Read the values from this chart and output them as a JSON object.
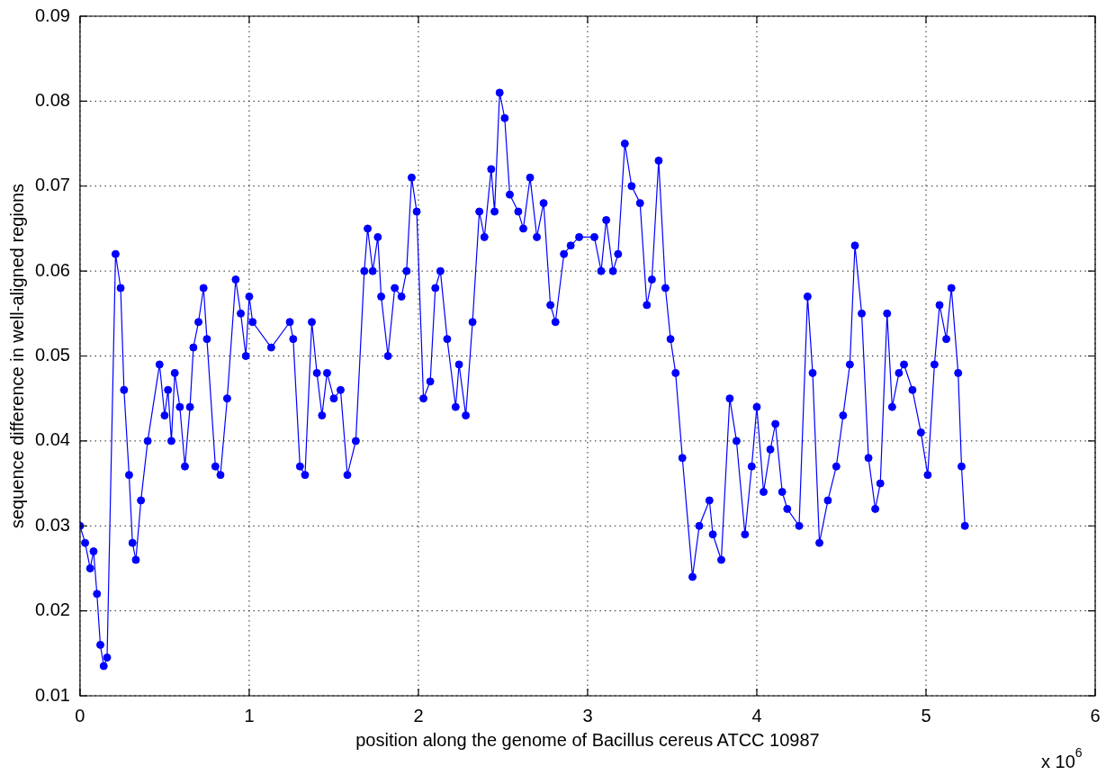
{
  "chart_data": {
    "type": "line",
    "xlabel": "position along the genome of Bacillus cereus ATCC 10987",
    "ylabel": "sequence difference in well-aligned regions",
    "annotations": [
      "x 10$^{6}$"
    ],
    "color": "#0000ff",
    "marker": "circle",
    "grid": true,
    "xlim": [
      0,
      6
    ],
    "xticks": [
      0,
      1,
      2,
      3,
      4,
      5,
      6
    ],
    "ylim": [
      0.01,
      0.09
    ],
    "yticks": [
      0.01,
      0.02,
      0.03,
      0.04,
      0.05,
      0.06,
      0.07,
      0.08,
      0.09
    ],
    "x": [
      0,
      0.03,
      0.06,
      0.08,
      0.1,
      0.12,
      0.14,
      0.16,
      0.21,
      0.24,
      0.26,
      0.29,
      0.31,
      0.33,
      0.36,
      0.4,
      0.47,
      0.5,
      0.52,
      0.54,
      0.56,
      0.59,
      0.62,
      0.65,
      0.67,
      0.7,
      0.73,
      0.75,
      0.8,
      0.83,
      0.87,
      0.92,
      0.95,
      0.98,
      1.0,
      1.02,
      1.13,
      1.24,
      1.26,
      1.3,
      1.33,
      1.37,
      1.4,
      1.43,
      1.46,
      1.5,
      1.54,
      1.58,
      1.63,
      1.68,
      1.7,
      1.73,
      1.76,
      1.78,
      1.82,
      1.86,
      1.9,
      1.93,
      1.96,
      1.99,
      2.03,
      2.07,
      2.1,
      2.13,
      2.17,
      2.22,
      2.24,
      2.28,
      2.32,
      2.36,
      2.39,
      2.43,
      2.45,
      2.48,
      2.51,
      2.54,
      2.59,
      2.62,
      2.66,
      2.7,
      2.74,
      2.78,
      2.81,
      2.86,
      2.9,
      2.95,
      3.04,
      3.08,
      3.11,
      3.15,
      3.18,
      3.22,
      3.26,
      3.31,
      3.35,
      3.38,
      3.42,
      3.46,
      3.49,
      3.52,
      3.56,
      3.62,
      3.66,
      3.72,
      3.74,
      3.79,
      3.84,
      3.88,
      3.93,
      3.97,
      4.0,
      4.04,
      4.08,
      4.11,
      4.15,
      4.18,
      4.25,
      4.3,
      4.33,
      4.37,
      4.42,
      4.47,
      4.51,
      4.55,
      4.58,
      4.62,
      4.66,
      4.7,
      4.73,
      4.77,
      4.8,
      4.84,
      4.87,
      4.92,
      4.97,
      5.01,
      5.05,
      5.08,
      5.12,
      5.15,
      5.19,
      5.21,
      5.23
    ],
    "values": [
      0.03,
      0.028,
      0.025,
      0.027,
      0.022,
      0.016,
      0.0135,
      0.0145,
      0.062,
      0.058,
      0.046,
      0.036,
      0.028,
      0.026,
      0.033,
      0.04,
      0.049,
      0.043,
      0.046,
      0.04,
      0.048,
      0.044,
      0.037,
      0.044,
      0.051,
      0.054,
      0.058,
      0.052,
      0.037,
      0.036,
      0.045,
      0.059,
      0.055,
      0.05,
      0.057,
      0.054,
      0.051,
      0.054,
      0.052,
      0.037,
      0.036,
      0.054,
      0.048,
      0.043,
      0.048,
      0.045,
      0.046,
      0.036,
      0.04,
      0.06,
      0.065,
      0.06,
      0.064,
      0.057,
      0.05,
      0.058,
      0.057,
      0.06,
      0.071,
      0.067,
      0.045,
      0.047,
      0.058,
      0.06,
      0.052,
      0.044,
      0.049,
      0.043,
      0.054,
      0.067,
      0.064,
      0.072,
      0.067,
      0.081,
      0.078,
      0.069,
      0.067,
      0.065,
      0.071,
      0.064,
      0.068,
      0.056,
      0.054,
      0.062,
      0.063,
      0.064,
      0.064,
      0.06,
      0.066,
      0.06,
      0.062,
      0.075,
      0.07,
      0.068,
      0.056,
      0.059,
      0.073,
      0.058,
      0.052,
      0.048,
      0.038,
      0.024,
      0.03,
      0.033,
      0.029,
      0.026,
      0.045,
      0.04,
      0.029,
      0.037,
      0.044,
      0.034,
      0.039,
      0.042,
      0.034,
      0.032,
      0.03,
      0.057,
      0.048,
      0.028,
      0.033,
      0.037,
      0.043,
      0.049,
      0.063,
      0.055,
      0.038,
      0.032,
      0.035,
      0.055,
      0.044,
      0.048,
      0.049,
      0.046,
      0.041,
      0.036,
      0.049,
      0.056,
      0.052,
      0.058,
      0.048,
      0.037,
      0.03
    ]
  }
}
